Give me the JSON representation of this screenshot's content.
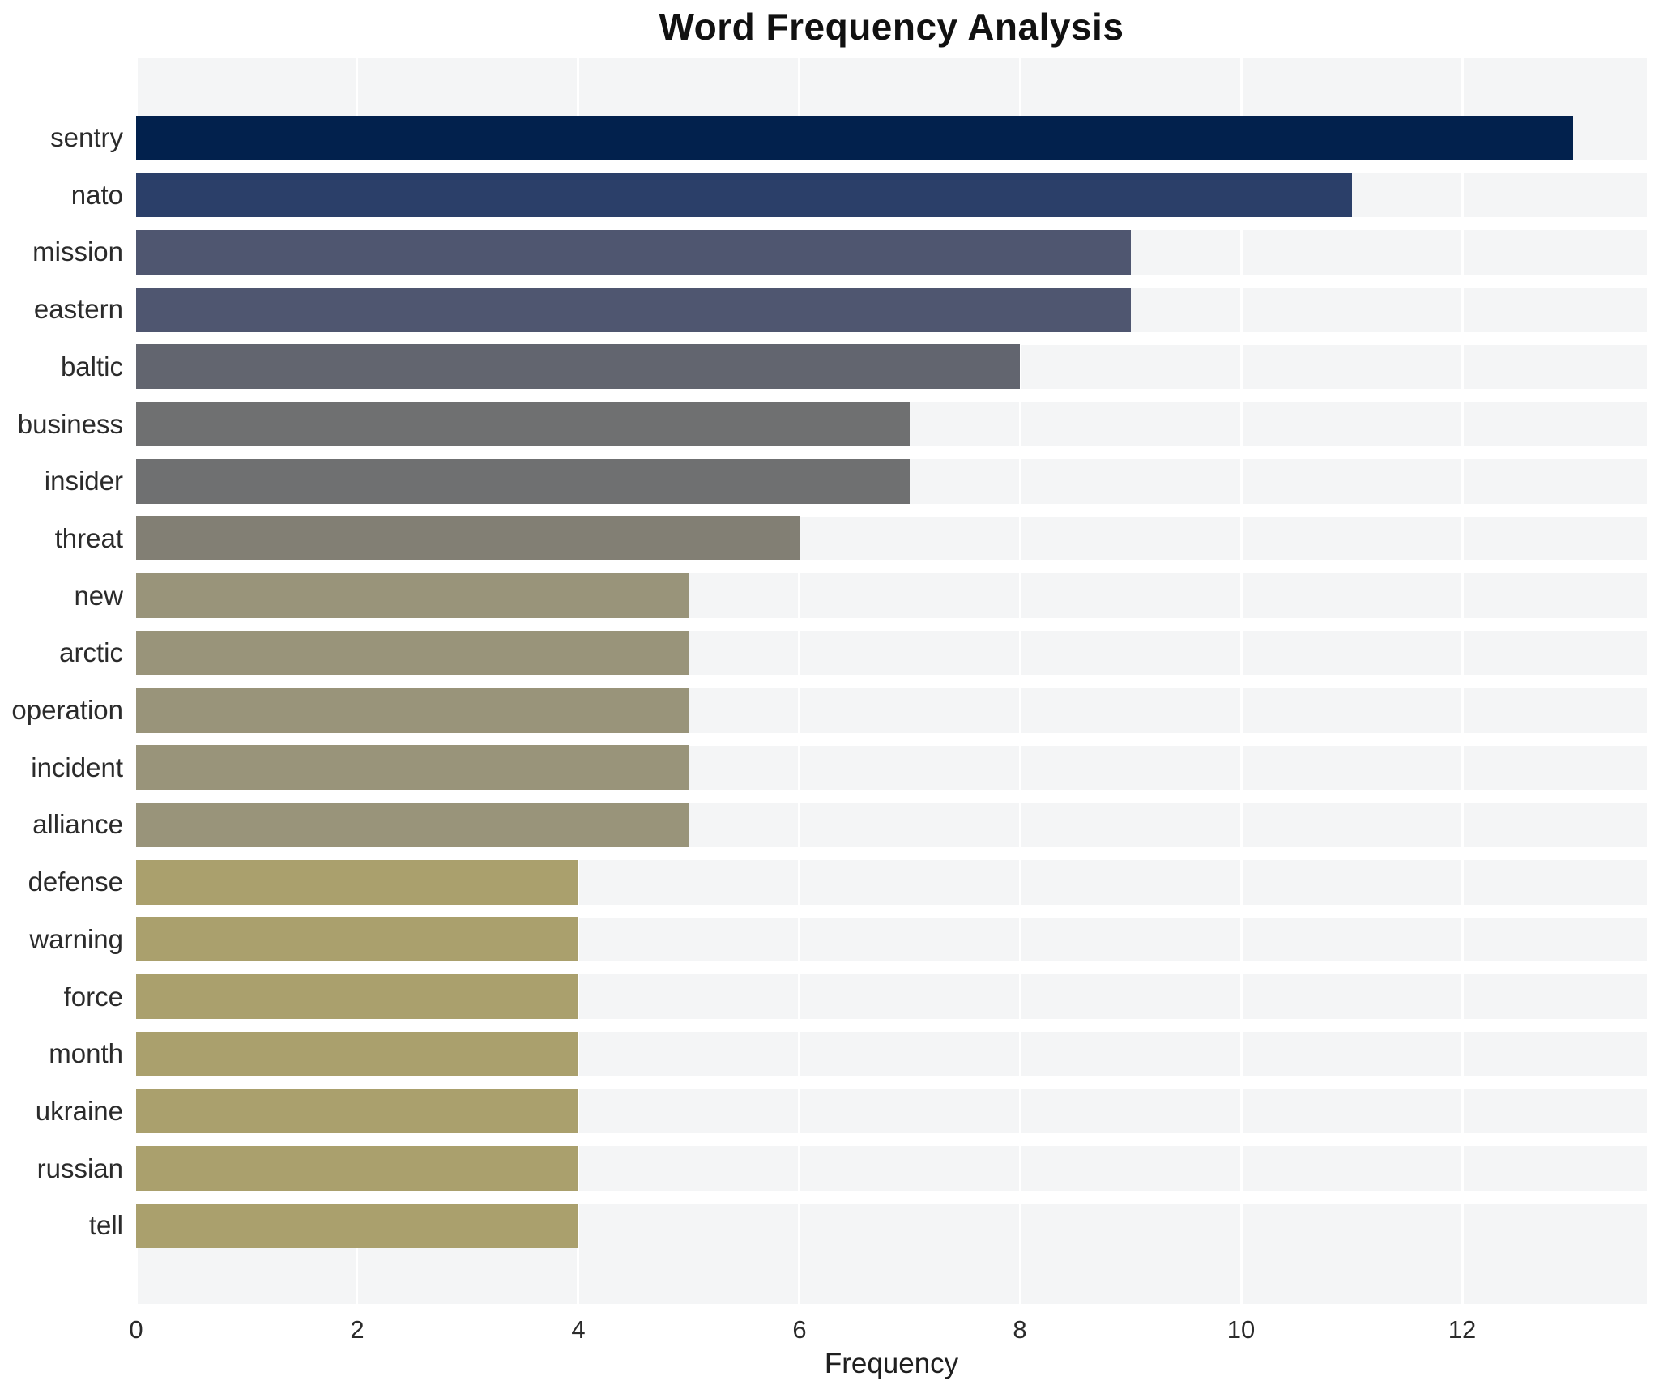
{
  "title": "Word Frequency Analysis",
  "xlabel": "Frequency",
  "chart_data": {
    "type": "bar",
    "orientation": "horizontal",
    "title": "Word Frequency Analysis",
    "xlabel": "Frequency",
    "ylabel": "",
    "categories": [
      "sentry",
      "nato",
      "mission",
      "eastern",
      "baltic",
      "business",
      "insider",
      "threat",
      "new",
      "arctic",
      "operation",
      "incident",
      "alliance",
      "defense",
      "warning",
      "force",
      "month",
      "ukraine",
      "russian",
      "tell"
    ],
    "values": [
      13,
      11,
      9,
      9,
      8,
      7,
      7,
      6,
      5,
      5,
      5,
      5,
      5,
      4,
      4,
      4,
      4,
      4,
      4,
      4
    ],
    "bar_colors": [
      "#02214d",
      "#2b3f69",
      "#4f5670",
      "#4f5670",
      "#62656f",
      "#6f7071",
      "#6f7071",
      "#827f74",
      "#99947a",
      "#99947a",
      "#99947a",
      "#99947a",
      "#99947a",
      "#aaa06d",
      "#aaa06d",
      "#aaa06d",
      "#aaa06d",
      "#aaa06d",
      "#aaa06d",
      "#aaa06d"
    ],
    "x_ticks": [
      0,
      2,
      4,
      6,
      8,
      10,
      12
    ],
    "xlim": [
      0,
      13.67
    ],
    "grid": true,
    "legend_position": "none",
    "plot_background": "#f4f5f6",
    "grid_color": "#ffffff",
    "text_color": "#2b2b2b"
  }
}
